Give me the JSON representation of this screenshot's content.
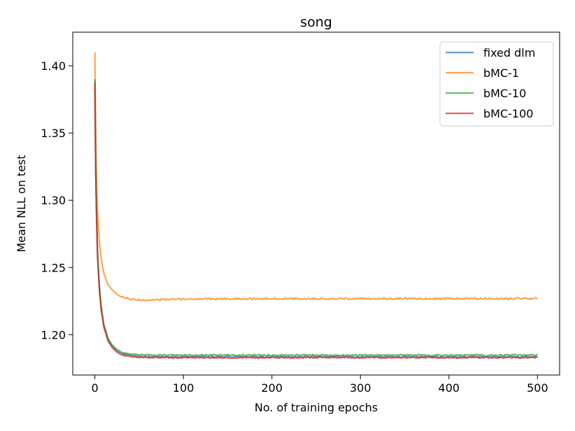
{
  "chart_data": {
    "type": "line",
    "title": "song",
    "xlabel": "No. of training epochs",
    "ylabel": "Mean NLL on test",
    "xlim": [
      -25,
      525
    ],
    "ylim": [
      1.17,
      1.425
    ],
    "xticks": [
      0,
      100,
      200,
      300,
      400,
      500
    ],
    "yticks": [
      1.2,
      1.25,
      1.3,
      1.35,
      1.4
    ],
    "ytick_labels": [
      "1.20",
      "1.25",
      "1.30",
      "1.35",
      "1.40"
    ],
    "grid": false,
    "legend_position": "top-right",
    "series": [
      {
        "name": "fixed dlm",
        "color": "#1f77b4",
        "x": [
          0,
          1,
          2,
          3,
          5,
          7,
          10,
          15,
          20,
          25,
          30,
          40,
          50,
          60,
          80,
          100,
          150,
          200,
          250,
          300,
          350,
          400,
          450,
          500
        ],
        "y": [
          1.389,
          1.32,
          1.285,
          1.26,
          1.235,
          1.22,
          1.207,
          1.196,
          1.191,
          1.188,
          1.186,
          1.1845,
          1.1838,
          1.1836,
          1.1835,
          1.1835,
          1.1835,
          1.1835,
          1.1835,
          1.1835,
          1.1835,
          1.1835,
          1.1835,
          1.1835
        ]
      },
      {
        "name": "bMC-1",
        "color": "#ff7f0e",
        "x": [
          0,
          1,
          2,
          3,
          5,
          7,
          10,
          15,
          20,
          25,
          30,
          40,
          50,
          60,
          80,
          100,
          150,
          200,
          250,
          300,
          350,
          400,
          450,
          500
        ],
        "y": [
          1.41,
          1.34,
          1.31,
          1.292,
          1.27,
          1.257,
          1.246,
          1.237,
          1.233,
          1.23,
          1.228,
          1.2265,
          1.2258,
          1.2258,
          1.2262,
          1.2265,
          1.2267,
          1.2268,
          1.2268,
          1.2268,
          1.2268,
          1.2268,
          1.2268,
          1.227
        ]
      },
      {
        "name": "bMC-10",
        "color": "#2ca02c",
        "x": [
          0,
          1,
          2,
          3,
          5,
          7,
          10,
          15,
          20,
          25,
          30,
          40,
          50,
          60,
          80,
          100,
          150,
          200,
          250,
          300,
          350,
          400,
          450,
          500
        ],
        "y": [
          1.39,
          1.325,
          1.288,
          1.262,
          1.237,
          1.222,
          1.208,
          1.197,
          1.192,
          1.189,
          1.187,
          1.1855,
          1.185,
          1.1848,
          1.1848,
          1.1848,
          1.1848,
          1.1848,
          1.1848,
          1.1848,
          1.1848,
          1.1848,
          1.1848,
          1.1848
        ]
      },
      {
        "name": "bMC-100",
        "color": "#d62728",
        "x": [
          0,
          1,
          2,
          3,
          5,
          7,
          10,
          15,
          20,
          25,
          30,
          40,
          50,
          60,
          80,
          100,
          150,
          200,
          250,
          300,
          350,
          400,
          450,
          500
        ],
        "y": [
          1.387,
          1.318,
          1.283,
          1.258,
          1.234,
          1.219,
          1.206,
          1.195,
          1.19,
          1.187,
          1.185,
          1.1838,
          1.1832,
          1.183,
          1.183,
          1.183,
          1.183,
          1.183,
          1.183,
          1.183,
          1.183,
          1.183,
          1.183,
          1.183
        ]
      }
    ]
  }
}
